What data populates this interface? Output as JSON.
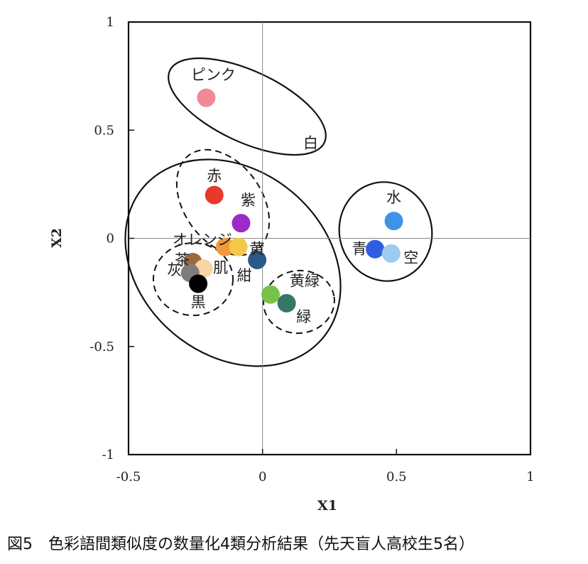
{
  "chart_data": {
    "type": "scatter",
    "xlabel": "X1",
    "ylabel": "X2",
    "xlim": [
      -0.5,
      1
    ],
    "ylim": [
      -1,
      1
    ],
    "x_ticks": [
      -0.5,
      0,
      0.5,
      1
    ],
    "x_tick_labels": [
      "-0.5",
      "0",
      "0.5",
      "1"
    ],
    "y_ticks": [
      1,
      0.5,
      0,
      -0.5,
      -1
    ],
    "y_tick_labels": [
      "1",
      "0.5",
      "0",
      "-0.5",
      "-1"
    ],
    "grid": false,
    "points": [
      {
        "label": "ピンク",
        "x": -0.21,
        "y": 0.65,
        "color": "#f08a96"
      },
      {
        "label": "白",
        "x": 0.12,
        "y": 0.45,
        "color": "#ffffff"
      },
      {
        "label": "赤",
        "x": -0.18,
        "y": 0.2,
        "color": "#e8392c"
      },
      {
        "label": "紫",
        "x": -0.08,
        "y": 0.07,
        "color": "#9b2bc9"
      },
      {
        "label": "オレンジ",
        "x": -0.14,
        "y": -0.04,
        "color": "#f29a3a"
      },
      {
        "label": "黄",
        "x": -0.09,
        "y": -0.04,
        "color": "#f5c84a"
      },
      {
        "label": "紺",
        "x": -0.02,
        "y": -0.1,
        "color": "#2a5a85"
      },
      {
        "label": "茶",
        "x": -0.26,
        "y": -0.11,
        "color": "#9c6a3e"
      },
      {
        "label": "肌",
        "x": -0.22,
        "y": -0.14,
        "color": "#f8d5a5"
      },
      {
        "label": "灰",
        "x": -0.27,
        "y": -0.16,
        "color": "#7d7d7d"
      },
      {
        "label": "黒",
        "x": -0.24,
        "y": -0.21,
        "color": "#000000"
      },
      {
        "label": "黄緑",
        "x": 0.03,
        "y": -0.26,
        "color": "#78c24a"
      },
      {
        "label": "緑",
        "x": 0.09,
        "y": -0.3,
        "color": "#35786a"
      },
      {
        "label": "水",
        "x": 0.49,
        "y": 0.08,
        "color": "#3f93e6"
      },
      {
        "label": "青",
        "x": 0.42,
        "y": -0.05,
        "color": "#2f5fe0"
      },
      {
        "label": "空",
        "x": 0.48,
        "y": -0.07,
        "color": "#9ccaf0"
      }
    ]
  },
  "caption": "図5　色彩語間類似度の数量化4類分析結果（先天盲人高校生5名）"
}
